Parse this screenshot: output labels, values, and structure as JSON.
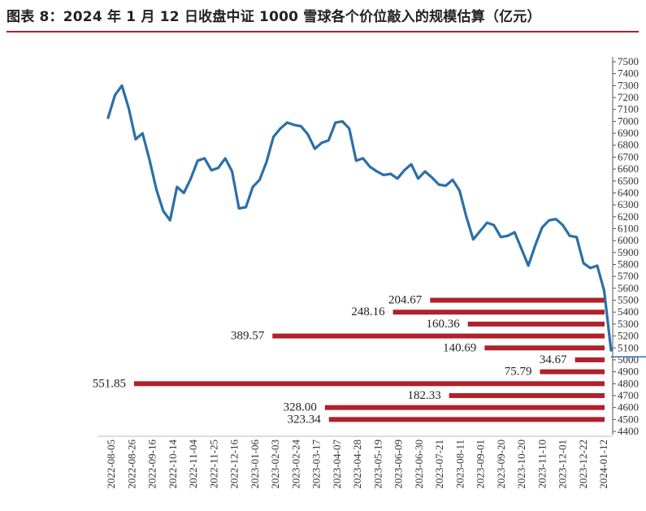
{
  "title": "图表 8：2024 年 1 月 12 日收盘中证 1000 雪球各个价位敲入的规模估算（亿元）",
  "colors": {
    "line": "#2b6fa8",
    "bar": "#b0212b",
    "axis": "#555555",
    "rule": "#b0212b"
  },
  "chart_data": {
    "type": "line",
    "ylim": [
      4400,
      7500
    ],
    "yticks": [
      4400,
      4500,
      4600,
      4700,
      4800,
      4900,
      5000,
      5100,
      5200,
      5300,
      5400,
      5500,
      5600,
      5700,
      5800,
      5900,
      6000,
      6100,
      6200,
      6300,
      6400,
      6500,
      6600,
      6700,
      6800,
      6900,
      7000,
      7100,
      7200,
      7300,
      7400,
      7500
    ],
    "x_tick_labels": [
      "2022-08-05",
      "2022-08-26",
      "2022-09-16",
      "2022-10-14",
      "2022-11-04",
      "2022-11-25",
      "2022-12-16",
      "2023-01-06",
      "2023-02-03",
      "2023-02-24",
      "2023-03-17",
      "2023-04-07",
      "2023-04-28",
      "2023-05-19",
      "2023-06-09",
      "2023-06-30",
      "2023-07-21",
      "2023-08-11",
      "2023-09-01",
      "2023-09-20",
      "2023-10-20",
      "2023-11-10",
      "2023-12-01",
      "2023-12-22",
      "2024-01-12"
    ],
    "series": [
      {
        "values": [
          7030,
          7220,
          7300,
          7110,
          6850,
          6900,
          6680,
          6430,
          6250,
          6170,
          6450,
          6400,
          6520,
          6670,
          6690,
          6590,
          6610,
          6690,
          6580,
          6270,
          6280,
          6450,
          6510,
          6660,
          6870,
          6940,
          6990,
          6970,
          6960,
          6890,
          6770,
          6820,
          6840,
          6990,
          7000,
          6940,
          6670,
          6690,
          6620,
          6580,
          6550,
          6560,
          6520,
          6590,
          6640,
          6520,
          6580,
          6530,
          6470,
          6460,
          6510,
          6420,
          6200,
          6010,
          6080,
          6150,
          6130,
          6030,
          6040,
          6070,
          5930,
          5790,
          5960,
          6110,
          6170,
          6180,
          6130,
          6040,
          6030,
          5810,
          5770,
          5790,
          5580,
          5080
        ]
      }
    ],
    "bars": [
      {
        "price": 5500,
        "value": 204.67
      },
      {
        "price": 5400,
        "value": 248.16
      },
      {
        "price": 5300,
        "value": 160.36
      },
      {
        "price": 5200,
        "value": 389.57
      },
      {
        "price": 5100,
        "value": 140.69
      },
      {
        "price": 5000,
        "value": 34.67
      },
      {
        "price": 4900,
        "value": 75.79
      },
      {
        "price": 4800,
        "value": 551.85
      },
      {
        "price": 4700,
        "value": 182.33
      },
      {
        "price": 4600,
        "value": 328.0
      },
      {
        "price": 4500,
        "value": 323.34
      }
    ]
  }
}
